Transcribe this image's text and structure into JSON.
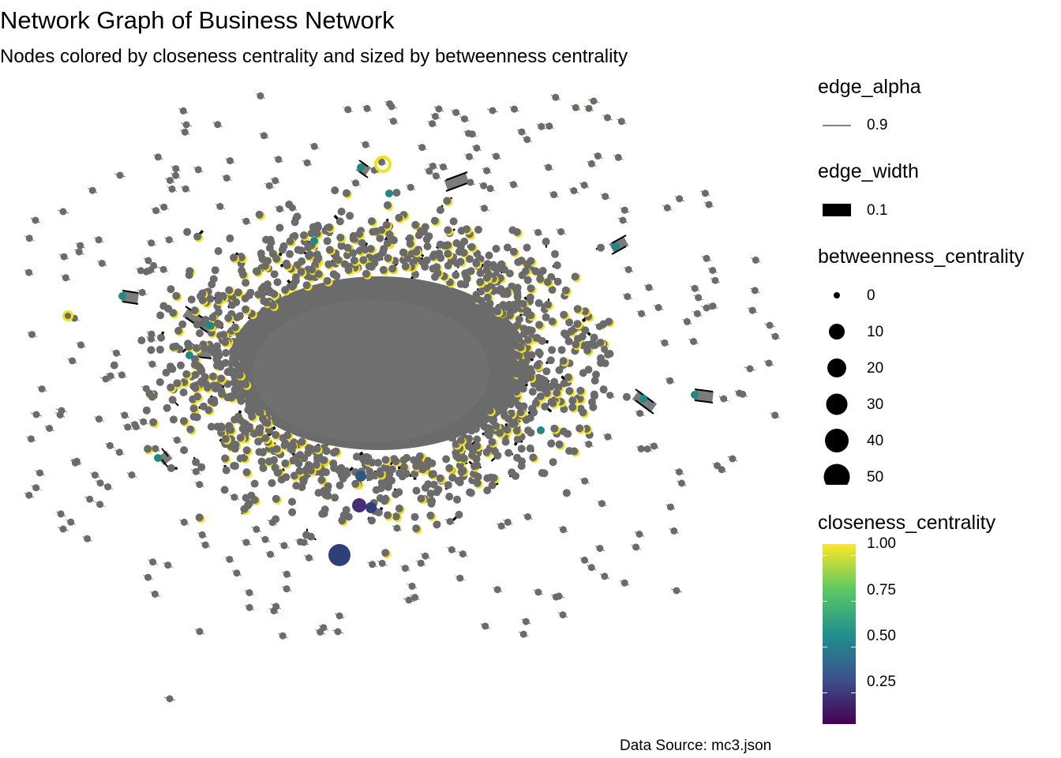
{
  "title": "Network Graph of Business Network",
  "subtitle": "Nodes colored by closeness centrality and sized by betweenness centrality",
  "caption": "Data Source: mc3.json",
  "colors": {
    "node_fill": "#6b6b6b",
    "ring_yellow": "#f2e21e",
    "edge": "#000000",
    "teal": "#1f8a85",
    "navy": "#2e3f7a",
    "purple": "#4a2d7a"
  },
  "legend": {
    "edge_alpha": {
      "title": "edge_alpha",
      "label": "0.9"
    },
    "edge_width": {
      "title": "edge_width",
      "label": "0.1"
    },
    "betweenness": {
      "title": "betweenness_centrality",
      "labels": [
        "0",
        "10",
        "20",
        "30",
        "40",
        "50"
      ]
    },
    "closeness": {
      "title": "closeness_centrality",
      "labels": [
        "1.00",
        "0.75",
        "0.50",
        "0.25"
      ],
      "gradient": [
        "#440154",
        "#3b528b",
        "#21908d",
        "#5dc962",
        "#fde725"
      ]
    }
  }
}
